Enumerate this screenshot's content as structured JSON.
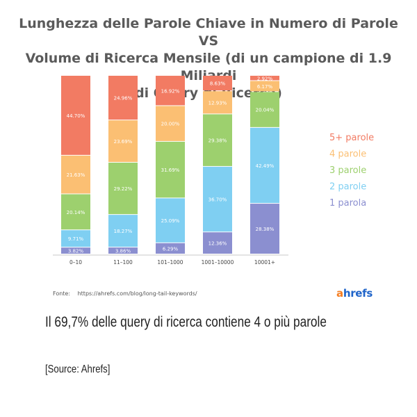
{
  "chart_data": {
    "type": "bar",
    "stacked": true,
    "title_lines": [
      "Lunghezza delle Parole Chiave in Numero di Parole VS",
      "Volume di Ricerca Mensile (di un campione di 1.9 Miliardi",
      "di Query di Ricerca)"
    ],
    "categories": [
      "0–10",
      "11–100",
      "101–1000",
      "1001–10000",
      "10001+"
    ],
    "series": [
      {
        "name": "1 parola",
        "color": "#8b8fd0",
        "values": [
          3.82,
          3.86,
          6.29,
          12.36,
          28.38
        ],
        "labels": [
          "3.82%",
          "3.86%",
          "6.29%",
          "12.36%",
          "28.38%"
        ]
      },
      {
        "name": "2 parole",
        "color": "#7fcff2",
        "values": [
          9.71,
          18.27,
          25.09,
          36.7,
          42.49
        ],
        "labels": [
          "9.71%",
          "18.27%",
          "25.09%",
          "36.70%",
          "42.49%"
        ]
      },
      {
        "name": "3 parole",
        "color": "#9dd06e",
        "values": [
          20.14,
          29.22,
          31.69,
          29.38,
          20.04
        ],
        "labels": [
          "20.14%",
          "29.22%",
          "31.69%",
          "29.38%",
          "20.04%"
        ]
      },
      {
        "name": "4 parole",
        "color": "#fbbf73",
        "values": [
          21.63,
          23.69,
          20.0,
          12.93,
          6.17
        ],
        "labels": [
          "21.63%",
          "23.69%",
          "20.00%",
          "12.93%",
          "6.17%"
        ]
      },
      {
        "name": "5+ parole",
        "color": "#f27b63",
        "values": [
          44.7,
          24.96,
          16.92,
          8.63,
          2.92
        ],
        "labels": [
          "44.70%",
          "24.96%",
          "16.92%",
          "8.63%",
          "2.92%"
        ]
      }
    ],
    "legend_order": [
      "5+ parole",
      "4 parole",
      "3 parole",
      "2 parole",
      "1 parola"
    ],
    "legend_position": "right",
    "ylim": [
      0,
      100
    ],
    "grid": false
  },
  "footer": {
    "source_label": "Fonte:",
    "source_url": "https://ahrefs.com/blog/long-tail-keywords/",
    "logo_a": "a",
    "logo_rest": "hrefs"
  },
  "caption": "Il 69,7% delle query di ricerca contiene 4 o più parole",
  "source_note": "[Source: Ahrefs]"
}
